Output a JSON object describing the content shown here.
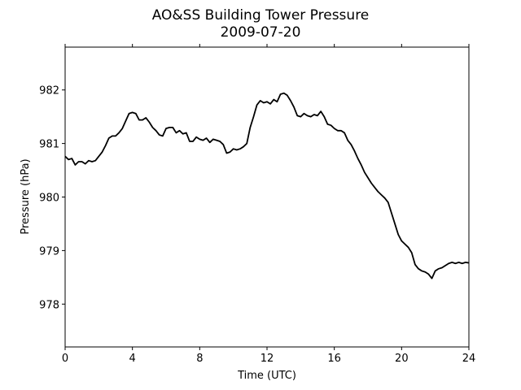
{
  "chart_data": {
    "type": "line",
    "title": "AO&SS Building Tower Pressure",
    "subtitle": "2009-07-20",
    "xlabel": "Time (UTC)",
    "ylabel": "Pressure (hPa)",
    "xlim": [
      0,
      24
    ],
    "ylim": [
      977.2,
      982.8
    ],
    "x_ticks": [
      0,
      4,
      8,
      12,
      16,
      20,
      24
    ],
    "y_ticks": [
      978,
      979,
      980,
      981,
      982
    ],
    "grid": false,
    "legend": "none",
    "series": [
      {
        "color": "#000000",
        "x": [
          0,
          0.2,
          0.4,
          0.6,
          0.8,
          1.0,
          1.2,
          1.4,
          1.6,
          1.8,
          2.0,
          2.2,
          2.4,
          2.6,
          2.8,
          3.0,
          3.2,
          3.4,
          3.6,
          3.8,
          4.0,
          4.2,
          4.4,
          4.6,
          4.8,
          5.0,
          5.2,
          5.4,
          5.6,
          5.8,
          6.0,
          6.2,
          6.4,
          6.6,
          6.8,
          7.0,
          7.2,
          7.4,
          7.6,
          7.8,
          8.0,
          8.2,
          8.4,
          8.6,
          8.8,
          9.0,
          9.2,
          9.4,
          9.6,
          9.8,
          10.0,
          10.2,
          10.4,
          10.6,
          10.8,
          11.0,
          11.2,
          11.4,
          11.6,
          11.8,
          12.0,
          12.2,
          12.4,
          12.6,
          12.8,
          13.0,
          13.2,
          13.4,
          13.6,
          13.8,
          14.0,
          14.2,
          14.4,
          14.6,
          14.8,
          15.0,
          15.2,
          15.4,
          15.6,
          15.8,
          16.0,
          16.2,
          16.4,
          16.6,
          16.8,
          17.0,
          17.2,
          17.4,
          17.6,
          17.8,
          18.0,
          18.2,
          18.4,
          18.6,
          18.8,
          19.0,
          19.2,
          19.4,
          19.6,
          19.8,
          20.0,
          20.2,
          20.4,
          20.6,
          20.8,
          21.0,
          21.2,
          21.4,
          21.6,
          21.8,
          22.0,
          22.2,
          22.4,
          22.6,
          22.8,
          23.0,
          23.2,
          23.4,
          23.6,
          23.8,
          24.0
        ],
        "y": [
          980.76,
          980.7,
          980.72,
          980.6,
          980.66,
          980.66,
          980.62,
          980.68,
          980.66,
          980.68,
          980.76,
          980.84,
          980.96,
          981.1,
          981.14,
          981.14,
          981.2,
          981.28,
          981.42,
          981.56,
          981.58,
          981.56,
          981.44,
          981.44,
          981.48,
          981.4,
          981.3,
          981.24,
          981.16,
          981.14,
          981.28,
          981.3,
          981.3,
          981.2,
          981.24,
          981.18,
          981.2,
          981.04,
          981.04,
          981.12,
          981.08,
          981.06,
          981.1,
          981.02,
          981.08,
          981.06,
          981.04,
          980.98,
          980.82,
          980.84,
          980.9,
          980.88,
          980.9,
          980.94,
          981.0,
          981.3,
          981.5,
          981.72,
          981.8,
          981.76,
          981.78,
          981.74,
          981.82,
          981.78,
          981.92,
          981.94,
          981.9,
          981.8,
          981.68,
          981.52,
          981.5,
          981.56,
          981.52,
          981.5,
          981.54,
          981.52,
          981.6,
          981.5,
          981.36,
          981.34,
          981.28,
          981.24,
          981.24,
          981.2,
          981.06,
          980.98,
          980.86,
          980.72,
          980.6,
          980.46,
          980.36,
          980.26,
          980.18,
          980.1,
          980.04,
          979.98,
          979.9,
          979.7,
          979.5,
          979.3,
          979.18,
          979.12,
          979.06,
          978.96,
          978.74,
          978.66,
          978.62,
          978.6,
          978.56,
          978.48,
          978.62,
          978.66,
          978.68,
          978.72,
          978.76,
          978.78,
          978.76,
          978.78,
          978.76,
          978.78,
          978.77
        ]
      }
    ]
  }
}
